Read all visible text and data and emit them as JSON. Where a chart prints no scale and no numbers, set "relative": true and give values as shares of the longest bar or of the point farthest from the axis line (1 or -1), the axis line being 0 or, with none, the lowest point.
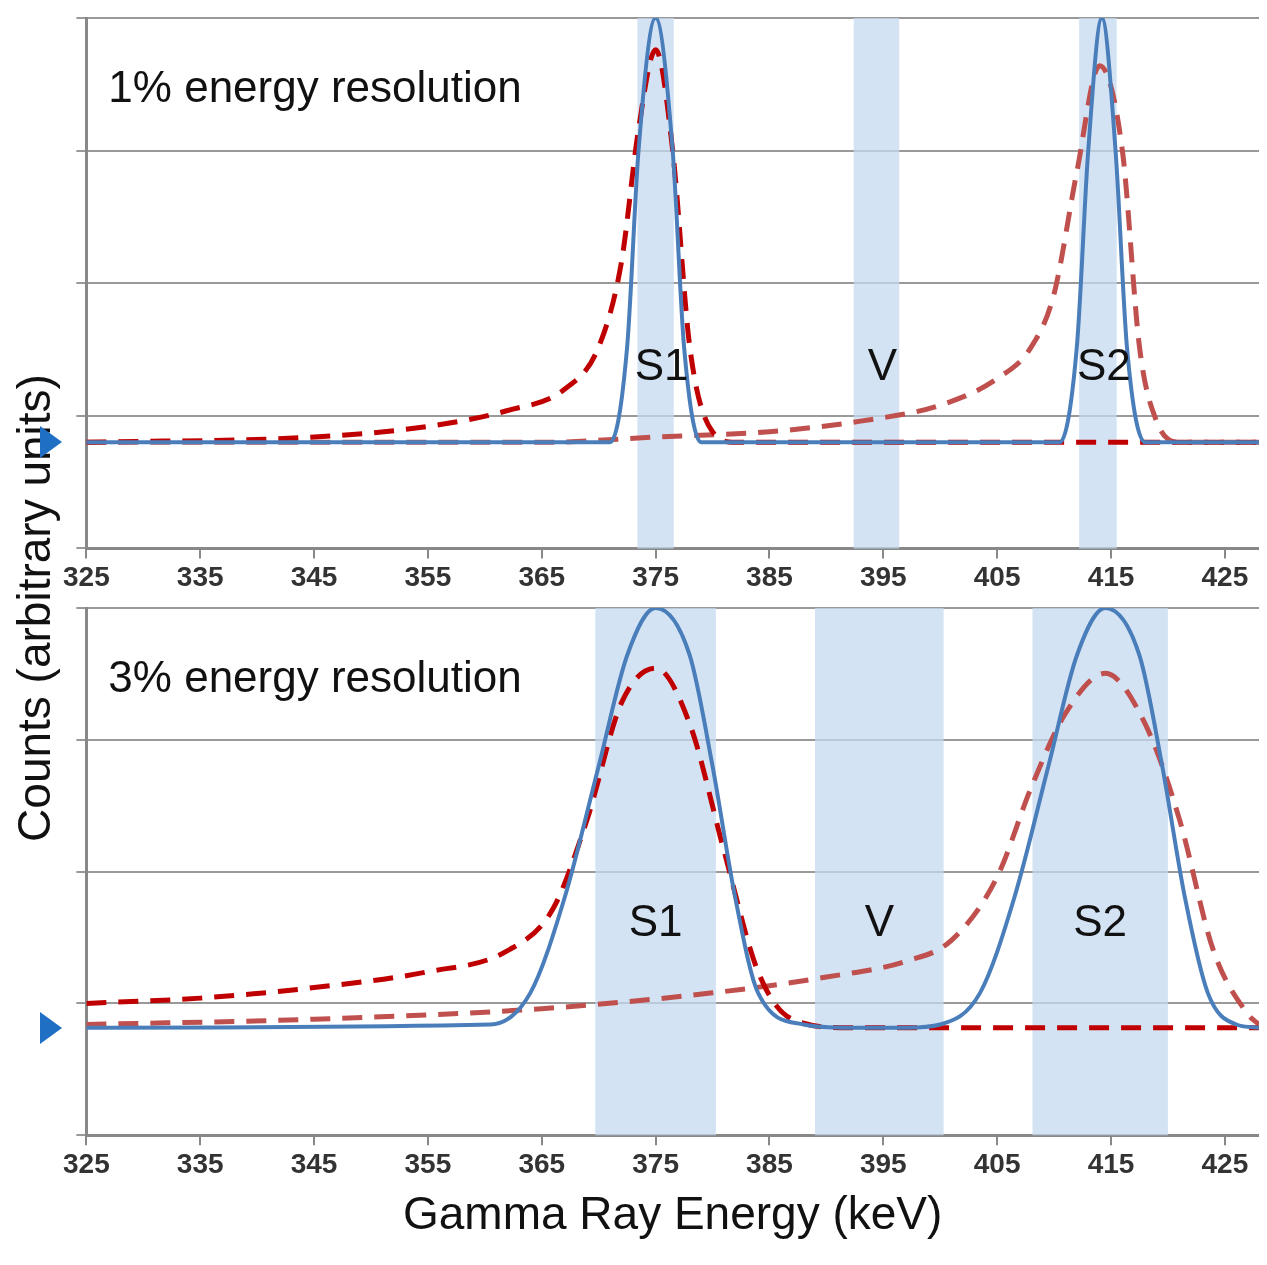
{
  "chart_data": [
    {
      "type": "line",
      "title": "1% energy resolution",
      "ylabel": "Counts (arbitrary units)",
      "relative": true,
      "grid": "y",
      "tick_labels": "x",
      "xlim": [
        325,
        428
      ],
      "xticks": [
        325,
        335,
        345,
        355,
        365,
        375,
        385,
        395,
        405,
        415,
        425
      ],
      "bands": [
        {
          "axis": "x",
          "from": 373.4,
          "to": 376.6,
          "label": "S1",
          "color": "#c6d9f0"
        },
        {
          "axis": "x",
          "from": 392.4,
          "to": 396.4,
          "label": "V",
          "color": "#c6d9f0"
        },
        {
          "axis": "x",
          "from": 412.2,
          "to": 415.5,
          "label": "S2",
          "color": "#c6d9f0"
        }
      ],
      "series": [
        {
          "type": "line",
          "color": "#4a7ebb",
          "line_style": "solid",
          "x": [
            325,
            371,
            372.5,
            373.5,
            375,
            376.5,
            377.5,
            379,
            410.5,
            412,
            413,
            414.2,
            415.4,
            416.4,
            418,
            428
          ],
          "values": [
            0.2,
            0.2,
            0.38,
            0.75,
            1,
            0.75,
            0.38,
            0.2,
            0.2,
            0.38,
            0.75,
            1,
            0.75,
            0.38,
            0.2,
            0.2
          ]
        },
        {
          "type": "line",
          "color": "#c00000",
          "line_style": "dashed",
          "x": [
            325,
            345,
            355,
            362,
            367,
            370,
            372,
            373.5,
            375,
            376.5,
            378,
            380,
            382,
            428
          ],
          "values": [
            0.2,
            0.21,
            0.23,
            0.26,
            0.3,
            0.38,
            0.54,
            0.79,
            0.94,
            0.75,
            0.38,
            0.22,
            0.2,
            0.2
          ]
        },
        {
          "type": "line",
          "color": "#c0504d",
          "line_style": "dashed",
          "x": [
            325,
            365,
            375,
            385,
            393,
            400,
            405,
            408,
            410,
            412,
            414,
            416,
            417.5,
            419,
            421,
            428
          ],
          "values": [
            0.2,
            0.2,
            0.21,
            0.22,
            0.24,
            0.27,
            0.32,
            0.38,
            0.48,
            0.71,
            0.91,
            0.75,
            0.38,
            0.24,
            0.2,
            0.2
          ]
        }
      ]
    },
    {
      "type": "line",
      "title": "3% energy resolution",
      "xlabel": "Gamma Ray Energy (keV)",
      "relative": true,
      "grid": "y",
      "tick_labels": "x",
      "xlim": [
        325,
        428
      ],
      "xticks": [
        325,
        335,
        345,
        355,
        365,
        375,
        385,
        395,
        405,
        415,
        425
      ],
      "bands": [
        {
          "axis": "x",
          "from": 369.7,
          "to": 380.3,
          "label": "S1",
          "color": "#c6d9f0"
        },
        {
          "axis": "x",
          "from": 389,
          "to": 400.3,
          "label": "V",
          "color": "#c6d9f0"
        },
        {
          "axis": "x",
          "from": 408.1,
          "to": 420,
          "label": "S2",
          "color": "#c6d9f0"
        }
      ],
      "series": [
        {
          "type": "line",
          "color": "#4a7ebb",
          "line_style": "solid",
          "x": [
            325,
            360.5,
            364,
            367,
            370,
            372.5,
            375,
            378,
            380,
            382,
            384,
            388,
            392,
            397,
            400,
            403.5,
            406.5,
            409.5,
            412,
            414.5,
            417.5,
            419.5,
            421.5,
            423.5,
            426,
            428
          ],
          "values": [
            0.204,
            0.21,
            0.27,
            0.45,
            0.7,
            0.91,
            1,
            0.91,
            0.7,
            0.45,
            0.27,
            0.21,
            0.204,
            0.204,
            0.21,
            0.27,
            0.45,
            0.7,
            0.91,
            1,
            0.91,
            0.7,
            0.45,
            0.27,
            0.21,
            0.204
          ]
        },
        {
          "type": "line",
          "color": "#c00000",
          "line_style": "dashed",
          "x": [
            325,
            335,
            345,
            355,
            362,
            366,
            369,
            372,
            375,
            378,
            381,
            384,
            387,
            392,
            428
          ],
          "values": [
            0.25,
            0.26,
            0.28,
            0.31,
            0.35,
            0.43,
            0.6,
            0.82,
            0.886,
            0.78,
            0.54,
            0.31,
            0.22,
            0.204,
            0.204
          ]
        },
        {
          "type": "line",
          "color": "#c0504d",
          "line_style": "dashed",
          "x": [
            325,
            345,
            365,
            380,
            390,
            397,
            401,
            405,
            408,
            411,
            414.5,
            418,
            421,
            424,
            427,
            428
          ],
          "values": [
            0.21,
            0.22,
            0.24,
            0.27,
            0.3,
            0.33,
            0.37,
            0.49,
            0.66,
            0.8,
            0.876,
            0.78,
            0.6,
            0.35,
            0.23,
            0.21
          ]
        }
      ]
    }
  ]
}
